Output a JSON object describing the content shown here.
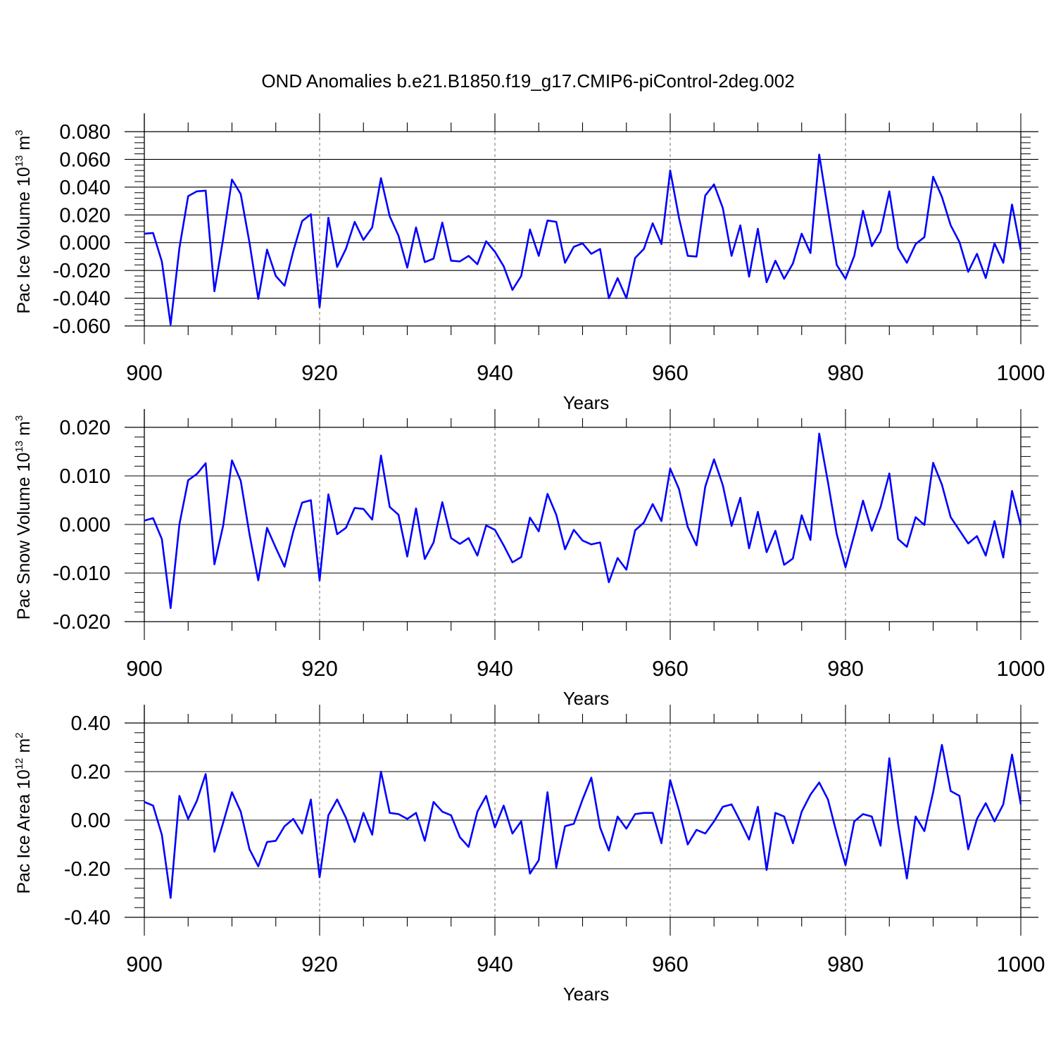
{
  "title": "OND Anomalies b.e21.B1850.f19_g17.CMIP6-piControl-2deg.002",
  "colors": {
    "line": "#0000ff",
    "axis": "#000000",
    "grid": "#888888"
  },
  "chart_data": [
    {
      "type": "line",
      "title": "OND Anomalies b.e21.B1850.f19_g17.CMIP6-piControl-2deg.002",
      "xlabel": "Years",
      "ylabel": {
        "base": "Pac Ice Volume 10",
        "exp": "13",
        "unit": " m",
        "unit_exp": "3"
      },
      "xlim": [
        900,
        1000
      ],
      "ylim": [
        -0.06,
        0.08
      ],
      "x_ticks": [
        900,
        920,
        940,
        960,
        980,
        1000
      ],
      "x_tick_labels": [
        "900",
        "920",
        "940",
        "960",
        "980",
        "1000"
      ],
      "y_ticks": [
        -0.06,
        -0.04,
        -0.02,
        0.0,
        0.02,
        0.04,
        0.06,
        0.08
      ],
      "y_tick_labels": [
        "-0.060",
        "-0.040",
        "-0.020",
        "0.000",
        "0.020",
        "0.040",
        "0.060",
        "0.080"
      ],
      "x_grid": [
        920,
        940,
        960,
        980
      ],
      "x_start": 900,
      "values": [
        0.0065,
        0.007,
        -0.0135,
        -0.059,
        -0.004,
        0.0335,
        0.037,
        0.0375,
        -0.035,
        0.003,
        0.0455,
        0.035,
        0.0,
        -0.0405,
        -0.005,
        -0.024,
        -0.031,
        -0.006,
        0.0155,
        0.0205,
        -0.0465,
        0.018,
        -0.0175,
        -0.0045,
        0.015,
        0.002,
        0.011,
        0.0465,
        0.019,
        0.005,
        -0.018,
        0.011,
        -0.014,
        -0.0115,
        0.0145,
        -0.013,
        -0.0135,
        -0.0095,
        -0.0155,
        0.001,
        -0.0065,
        -0.017,
        -0.034,
        -0.024,
        0.0095,
        -0.0095,
        0.016,
        0.015,
        -0.0145,
        -0.003,
        -0.0005,
        -0.008,
        -0.0045,
        -0.04,
        -0.0255,
        -0.04,
        -0.011,
        -0.0045,
        0.014,
        -0.001,
        0.052,
        0.018,
        -0.0095,
        -0.01,
        0.034,
        0.042,
        0.025,
        -0.0095,
        0.0125,
        -0.0245,
        0.01,
        -0.0285,
        -0.013,
        -0.026,
        -0.015,
        0.0065,
        -0.0075,
        0.0635,
        0.0235,
        -0.016,
        -0.026,
        -0.0095,
        0.023,
        -0.0025,
        0.008,
        0.037,
        -0.004,
        -0.0145,
        -0.001,
        0.004,
        0.0475,
        0.033,
        0.0125,
        0.0005,
        -0.021,
        -0.008,
        -0.0255,
        -0.0005,
        -0.0145,
        0.0275,
        -0.0055
      ]
    },
    {
      "type": "line",
      "title": "",
      "xlabel": "Years",
      "ylabel": {
        "base": "Pac Snow Volume 10",
        "exp": "13",
        "unit": " m",
        "unit_exp": "3"
      },
      "xlim": [
        900,
        1000
      ],
      "ylim": [
        -0.02,
        0.02
      ],
      "x_ticks": [
        900,
        920,
        940,
        960,
        980,
        1000
      ],
      "x_tick_labels": [
        "900",
        "920",
        "940",
        "960",
        "980",
        "1000"
      ],
      "y_ticks": [
        -0.02,
        -0.01,
        0.0,
        0.01,
        0.02
      ],
      "y_tick_labels": [
        "-0.020",
        "-0.010",
        "0.000",
        "0.010",
        "0.020"
      ],
      "x_grid": [
        920,
        940,
        960,
        980
      ],
      "x_start": 900,
      "values": [
        0.0008,
        0.0013,
        -0.003,
        -0.0172,
        0.0,
        0.0091,
        0.0104,
        0.0126,
        -0.0082,
        -0.0002,
        0.0132,
        0.009,
        -0.002,
        -0.0115,
        -0.0007,
        -0.0048,
        -0.0087,
        -0.0014,
        0.0045,
        0.005,
        -0.0115,
        0.0062,
        -0.002,
        -0.0007,
        0.0034,
        0.0032,
        0.001,
        0.0142,
        0.0036,
        0.002,
        -0.0066,
        0.0033,
        -0.0071,
        -0.0037,
        0.0046,
        -0.0028,
        -0.004,
        -0.0028,
        -0.0064,
        -0.0002,
        -0.0011,
        -0.0043,
        -0.0078,
        -0.0067,
        0.0014,
        -0.0014,
        0.0063,
        0.002,
        -0.0051,
        -0.0011,
        -0.0033,
        -0.0041,
        -0.0037,
        -0.0119,
        -0.0069,
        -0.0093,
        -0.0012,
        0.0004,
        0.0042,
        0.0007,
        0.0115,
        0.0073,
        -0.0005,
        -0.0043,
        0.0078,
        0.0134,
        0.0081,
        -0.0003,
        0.0055,
        -0.0049,
        0.0026,
        -0.0057,
        -0.0013,
        -0.0083,
        -0.007,
        0.0019,
        -0.0032,
        0.0187,
        0.0087,
        -0.002,
        -0.0088,
        -0.0021,
        0.0049,
        -0.0013,
        0.0036,
        0.0105,
        -0.003,
        -0.0046,
        0.0015,
        -0.0001,
        0.0127,
        0.0082,
        0.0015,
        -0.0012,
        -0.0039,
        -0.0024,
        -0.0064,
        0.0007,
        -0.0068,
        0.0069,
        -0.0002
      ]
    },
    {
      "type": "line",
      "title": "",
      "xlabel": "Years",
      "ylabel": {
        "base": "Pac Ice Area 10",
        "exp": "12",
        "unit": " m",
        "unit_exp": "2"
      },
      "xlim": [
        900,
        1000
      ],
      "ylim": [
        -0.4,
        0.4
      ],
      "x_ticks": [
        900,
        920,
        940,
        960,
        980,
        1000
      ],
      "x_tick_labels": [
        "900",
        "920",
        "940",
        "960",
        "980",
        "1000"
      ],
      "y_ticks": [
        -0.4,
        -0.2,
        0.0,
        0.2,
        0.4
      ],
      "y_tick_labels": [
        "-0.40",
        "-0.20",
        "0.00",
        "0.20",
        "0.40"
      ],
      "x_grid": [
        920,
        940,
        960,
        980
      ],
      "x_start": 900,
      "values": [
        0.075,
        0.06,
        -0.06,
        -0.32,
        0.1,
        0.005,
        0.08,
        0.19,
        -0.13,
        -0.01,
        0.115,
        0.035,
        -0.12,
        -0.19,
        -0.09,
        -0.085,
        -0.025,
        0.005,
        -0.055,
        0.085,
        -0.235,
        0.02,
        0.085,
        0.01,
        -0.09,
        0.03,
        -0.06,
        0.2,
        0.03,
        0.025,
        0.005,
        0.03,
        -0.085,
        0.075,
        0.035,
        0.02,
        -0.07,
        -0.11,
        0.035,
        0.1,
        -0.03,
        0.06,
        -0.055,
        -0.005,
        -0.22,
        -0.165,
        0.115,
        -0.195,
        -0.025,
        -0.015,
        0.085,
        0.175,
        -0.03,
        -0.125,
        0.015,
        -0.035,
        0.025,
        0.03,
        0.03,
        -0.095,
        0.165,
        0.04,
        -0.1,
        -0.04,
        -0.055,
        -0.005,
        0.055,
        0.065,
        -0.005,
        -0.08,
        0.055,
        -0.205,
        0.03,
        0.015,
        -0.095,
        0.035,
        0.105,
        0.155,
        0.085,
        -0.055,
        -0.185,
        -0.005,
        0.025,
        0.015,
        -0.105,
        0.255,
        -0.015,
        -0.24,
        0.015,
        -0.045,
        0.115,
        0.31,
        0.12,
        0.1,
        -0.12,
        0.005,
        0.07,
        -0.005,
        0.065,
        0.27,
        0.065
      ]
    }
  ]
}
